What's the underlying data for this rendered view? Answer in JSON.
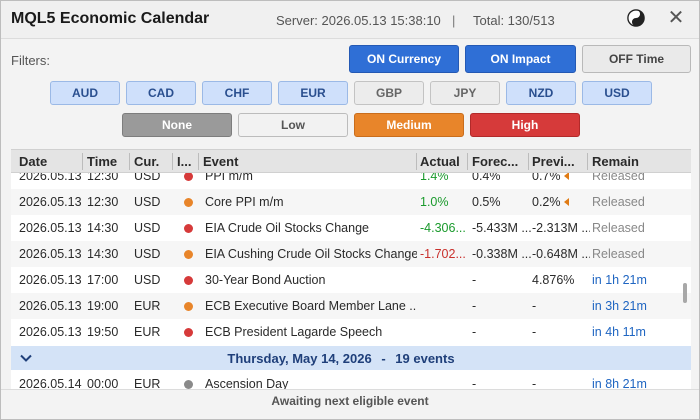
{
  "header": {
    "title": "MQL5 Economic Calendar",
    "server_time": "Server: 2026.05.13 15:38:10",
    "separator": "|",
    "total": "Total: 130/513",
    "close_glyph": "✕",
    "theme_icon": "yin-yang-icon"
  },
  "filters": {
    "label": "Filters:",
    "toggles": {
      "currency": "ON Currency",
      "impact": "ON Impact",
      "time": "OFF Time"
    },
    "currencies": [
      {
        "code": "AUD",
        "active": true
      },
      {
        "code": "CAD",
        "active": true
      },
      {
        "code": "CHF",
        "active": true
      },
      {
        "code": "EUR",
        "active": true
      },
      {
        "code": "GBP",
        "active": false
      },
      {
        "code": "JPY",
        "active": false
      },
      {
        "code": "NZD",
        "active": true
      },
      {
        "code": "USD",
        "active": true
      }
    ],
    "impacts": {
      "none": "None",
      "low": "Low",
      "medium": "Medium",
      "high": "High"
    }
  },
  "colors": {
    "accent_blue": "#2f6fd6",
    "impact_high": "#d63a3a",
    "impact_medium": "#e8852a",
    "impact_none": "#8a8a8a",
    "actual_positive": "#1a9a2c",
    "actual_negative": "#c9302c",
    "remain_upcoming": "#2066c2",
    "group_bg": "#d4e3f7"
  },
  "table": {
    "columns": {
      "date": "Date",
      "time": "Time",
      "currency": "Cur.",
      "impact": "I...",
      "event": "Event",
      "actual": "Actual",
      "forecast": "Forec...",
      "previous": "Previ...",
      "remain": "Remain"
    },
    "rows": [
      {
        "date": "2026.05.13",
        "time": "12:30",
        "currency": "USD",
        "impact": "high",
        "event": "PPI m/m",
        "actual": "1.4%",
        "forecast": "0.4%",
        "previous": "0.7%",
        "remain": "Released"
      },
      {
        "date": "2026.05.13",
        "time": "12:30",
        "currency": "USD",
        "impact": "medium",
        "event": "Core PPI m/m",
        "actual": "1.0%",
        "forecast": "0.5%",
        "previous": "0.2%",
        "remain": "Released"
      },
      {
        "date": "2026.05.13",
        "time": "14:30",
        "currency": "USD",
        "impact": "high",
        "event": "EIA Crude Oil Stocks Change",
        "actual": "-4.306...",
        "forecast": "-5.433M ...",
        "previous": "-2.313M ...",
        "remain": "Released"
      },
      {
        "date": "2026.05.13",
        "time": "14:30",
        "currency": "USD",
        "impact": "medium",
        "event": "EIA Cushing Crude Oil Stocks Change",
        "actual": "-1.702...",
        "forecast": "-0.338M ...",
        "previous": "-0.648M ...",
        "remain": "Released"
      },
      {
        "date": "2026.05.13",
        "time": "17:00",
        "currency": "USD",
        "impact": "high",
        "event": "30-Year Bond Auction",
        "actual": "",
        "forecast": "-",
        "previous": "4.876%",
        "remain": "in 1h 21m"
      },
      {
        "date": "2026.05.13",
        "time": "19:00",
        "currency": "EUR",
        "impact": "medium",
        "event": "ECB Executive Board Member Lane ...",
        "actual": "",
        "forecast": "-",
        "previous": "-",
        "remain": "in 3h 21m"
      },
      {
        "date": "2026.05.13",
        "time": "19:50",
        "currency": "EUR",
        "impact": "high",
        "event": "ECB President Lagarde Speech",
        "actual": "",
        "forecast": "-",
        "previous": "-",
        "remain": "in 4h 11m"
      }
    ],
    "group": {
      "date_label": "Thursday, May 14, 2026",
      "separator": "-",
      "count": "19 events"
    },
    "next_row": {
      "date": "2026.05.14",
      "time": "00:00",
      "currency": "EUR",
      "impact": "none",
      "event": "Ascension Day",
      "actual": "",
      "forecast": "-",
      "previous": "-",
      "remain": "in 8h 21m"
    }
  },
  "status": {
    "text": "Awaiting next eligible event"
  }
}
